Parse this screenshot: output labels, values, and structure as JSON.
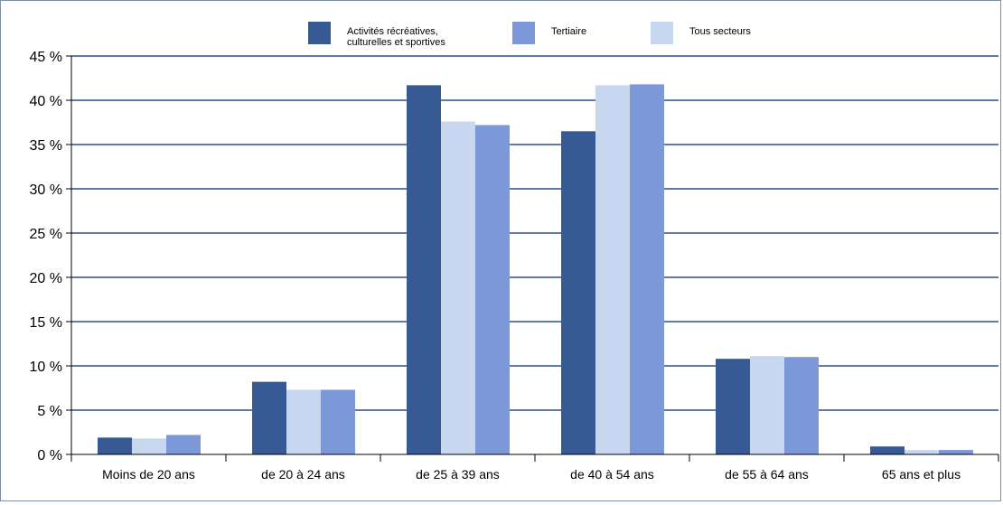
{
  "chart_data": {
    "type": "bar",
    "categories": [
      "Moins de 20 ans",
      "de 20 à 24 ans",
      "de 25 à 39 ans",
      "de 40 à 54 ans",
      "de 55 à 64 ans",
      "65 ans et plus"
    ],
    "series": [
      {
        "name": "Activités récréatives, culturelles et sportives",
        "color": "#375a95",
        "values": [
          1.9,
          8.2,
          41.7,
          36.5,
          10.8,
          0.9
        ]
      },
      {
        "name": "Tous secteurs",
        "color": "#c6d7ef",
        "values": [
          1.8,
          7.3,
          37.6,
          41.7,
          11.1,
          0.5
        ]
      },
      {
        "name": "Tertiaire",
        "color": "#7d98d9",
        "values": [
          2.2,
          7.3,
          37.2,
          41.8,
          11.0,
          0.5
        ]
      }
    ],
    "legend": [
      {
        "series": 0,
        "lines": [
          "Activités récréatives,",
          "culturelles et sportives"
        ]
      },
      {
        "series": 2,
        "lines": [
          "Tertiaire"
        ]
      },
      {
        "series": 1,
        "lines": [
          "Tous secteurs"
        ]
      }
    ],
    "legend_position": "top",
    "ylim": [
      0,
      45
    ],
    "yticks": [
      0,
      5,
      10,
      15,
      20,
      25,
      30,
      35,
      40,
      45
    ],
    "ytick_labels": [
      "0 %",
      "5 %",
      "10 %",
      "15 %",
      "20 %",
      "25 %",
      "30 %",
      "35 %",
      "40 %",
      "45 %"
    ],
    "grid": true,
    "grid_color": "#2e4f8a",
    "title": "",
    "xlabel": "",
    "ylabel": ""
  }
}
